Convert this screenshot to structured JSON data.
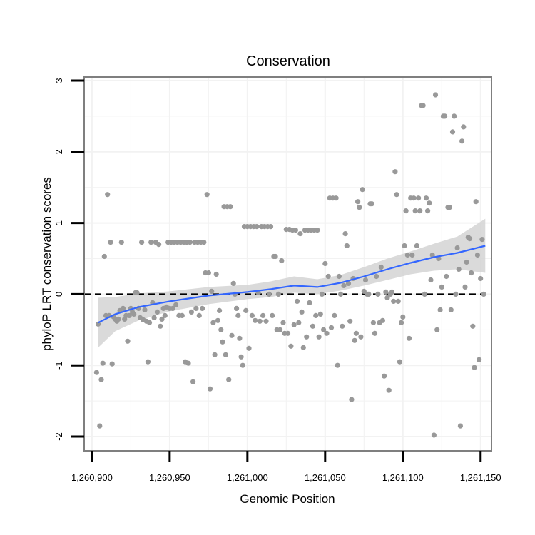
{
  "chart_data": {
    "type": "scatter",
    "title": "Conservation",
    "xlabel": "Genomic Position",
    "ylabel": "phyloP LRT conservation scores",
    "xlim": [
      1260895,
      1261157
    ],
    "ylim": [
      -2.2,
      3.05
    ],
    "x_ticks": [
      1260900,
      1260950,
      1261000,
      1261050,
      1261100,
      1261150
    ],
    "x_tick_labels": [
      "1,260,900",
      "1,260,950",
      "1,261,000",
      "1,261,050",
      "1,261,100",
      "1,261,150"
    ],
    "y_ticks": [
      -2,
      -1,
      0,
      1,
      2,
      3
    ],
    "y_tick_labels": [
      "-2",
      "-1",
      "0",
      "1",
      "2",
      "3"
    ],
    "reference_line_y": 0,
    "grid": true,
    "colors": {
      "points": "#999999",
      "smooth": "#3366ff",
      "band": "#d3d3d3",
      "frame": "#7f7f7f",
      "grid": "#f2f2f2"
    },
    "points": [
      [
        1260903,
        -1.1
      ],
      [
        1260904,
        -0.42
      ],
      [
        1260905,
        -1.85
      ],
      [
        1260906,
        -1.2
      ],
      [
        1260907,
        -0.97
      ],
      [
        1260908,
        0.53
      ],
      [
        1260909,
        -0.3
      ],
      [
        1260910,
        1.4
      ],
      [
        1260911,
        -0.3
      ],
      [
        1260912,
        0.73
      ],
      [
        1260913,
        -0.98
      ],
      [
        1260914,
        -0.32
      ],
      [
        1260915,
        -0.35
      ],
      [
        1260916,
        -0.38
      ],
      [
        1260917,
        -0.35
      ],
      [
        1260918,
        -0.23
      ],
      [
        1260919,
        0.73
      ],
      [
        1260920,
        -0.2
      ],
      [
        1260921,
        -0.35
      ],
      [
        1260922,
        -0.3
      ],
      [
        1260923,
        -0.66
      ],
      [
        1260924,
        -0.3
      ],
      [
        1260925,
        -0.2
      ],
      [
        1260926,
        -0.25
      ],
      [
        1260927,
        -0.28
      ],
      [
        1260928,
        0.02
      ],
      [
        1260929,
        0.02
      ],
      [
        1260930,
        -0.2
      ],
      [
        1260931,
        -0.33
      ],
      [
        1260932,
        0.73
      ],
      [
        1260933,
        -0.36
      ],
      [
        1260934,
        -0.22
      ],
      [
        1260935,
        -0.38
      ],
      [
        1260936,
        -0.95
      ],
      [
        1260937,
        -0.4
      ],
      [
        1260938,
        0.73
      ],
      [
        1260939,
        -0.12
      ],
      [
        1260940,
        -0.33
      ],
      [
        1260941,
        0.73
      ],
      [
        1260942,
        -0.25
      ],
      [
        1260943,
        0.7
      ],
      [
        1260944,
        -0.45
      ],
      [
        1260945,
        -0.35
      ],
      [
        1260946,
        -0.2
      ],
      [
        1260947,
        -0.3
      ],
      [
        1260948,
        -0.18
      ],
      [
        1260949,
        0.73
      ],
      [
        1260950,
        -0.2
      ],
      [
        1260951,
        0.73
      ],
      [
        1260952,
        -0.2
      ],
      [
        1260953,
        0.73
      ],
      [
        1260954,
        -0.15
      ],
      [
        1260955,
        0.73
      ],
      [
        1260956,
        -0.3
      ],
      [
        1260957,
        0.73
      ],
      [
        1260958,
        -0.3
      ],
      [
        1260959,
        0.73
      ],
      [
        1260960,
        -0.95
      ],
      [
        1260961,
        0.73
      ],
      [
        1260962,
        -0.97
      ],
      [
        1260963,
        0.73
      ],
      [
        1260964,
        -0.25
      ],
      [
        1260965,
        -1.23
      ],
      [
        1260966,
        0.73
      ],
      [
        1260967,
        -0.2
      ],
      [
        1260968,
        0.73
      ],
      [
        1260969,
        -0.3
      ],
      [
        1260970,
        0.73
      ],
      [
        1260971,
        -0.2
      ],
      [
        1260972,
        0.73
      ],
      [
        1260973,
        0.3
      ],
      [
        1260974,
        1.4
      ],
      [
        1260975,
        0.3
      ],
      [
        1260976,
        -1.33
      ],
      [
        1260977,
        0.04
      ],
      [
        1260978,
        -0.4
      ],
      [
        1260979,
        -0.85
      ],
      [
        1260980,
        0.28
      ],
      [
        1260981,
        -0.37
      ],
      [
        1260982,
        -0.23
      ],
      [
        1260983,
        -0.5
      ],
      [
        1260984,
        -0.67
      ],
      [
        1260985,
        1.23
      ],
      [
        1260986,
        -0.85
      ],
      [
        1260987,
        1.23
      ],
      [
        1260988,
        -1.2
      ],
      [
        1260989,
        1.23
      ],
      [
        1260990,
        -0.58
      ],
      [
        1260991,
        0.15
      ],
      [
        1260992,
        0.0
      ],
      [
        1260993,
        -0.2
      ],
      [
        1260994,
        -0.3
      ],
      [
        1260995,
        -0.62
      ],
      [
        1260996,
        -0.88
      ],
      [
        1260997,
        -1.0
      ],
      [
        1260998,
        0.95
      ],
      [
        1260999,
        -0.23
      ],
      [
        1261000,
        0.95
      ],
      [
        1261001,
        -0.76
      ],
      [
        1261002,
        0.95
      ],
      [
        1261003,
        -0.3
      ],
      [
        1261004,
        0.95
      ],
      [
        1261005,
        -0.37
      ],
      [
        1261006,
        0.95
      ],
      [
        1261007,
        0.02
      ],
      [
        1261008,
        -0.38
      ],
      [
        1261009,
        0.95
      ],
      [
        1261010,
        -0.3
      ],
      [
        1261011,
        0.95
      ],
      [
        1261012,
        -0.38
      ],
      [
        1261013,
        0.95
      ],
      [
        1261014,
        0.0
      ],
      [
        1261015,
        0.95
      ],
      [
        1261016,
        -0.3
      ],
      [
        1261017,
        0.53
      ],
      [
        1261018,
        0.53
      ],
      [
        1261019,
        -0.5
      ],
      [
        1261020,
        0.0
      ],
      [
        1261021,
        -0.5
      ],
      [
        1261022,
        0.47
      ],
      [
        1261023,
        -0.4
      ],
      [
        1261024,
        -0.55
      ],
      [
        1261025,
        0.91
      ],
      [
        1261026,
        -0.55
      ],
      [
        1261027,
        0.91
      ],
      [
        1261028,
        -0.73
      ],
      [
        1261029,
        0.9
      ],
      [
        1261030,
        -0.43
      ],
      [
        1261031,
        0.9
      ],
      [
        1261032,
        -0.1
      ],
      [
        1261033,
        -0.4
      ],
      [
        1261034,
        0.85
      ],
      [
        1261035,
        -0.25
      ],
      [
        1261036,
        -0.75
      ],
      [
        1261037,
        0.9
      ],
      [
        1261038,
        -0.6
      ],
      [
        1261039,
        0.9
      ],
      [
        1261040,
        -0.12
      ],
      [
        1261041,
        0.9
      ],
      [
        1261042,
        -0.45
      ],
      [
        1261043,
        0.9
      ],
      [
        1261044,
        -0.3
      ],
      [
        1261045,
        0.9
      ],
      [
        1261046,
        -0.6
      ],
      [
        1261047,
        -0.28
      ],
      [
        1261048,
        0.0
      ],
      [
        1261049,
        -0.5
      ],
      [
        1261050,
        0.43
      ],
      [
        1261051,
        -0.55
      ],
      [
        1261052,
        0.25
      ],
      [
        1261053,
        1.35
      ],
      [
        1261054,
        -0.47
      ],
      [
        1261055,
        1.35
      ],
      [
        1261056,
        -0.3
      ],
      [
        1261057,
        1.35
      ],
      [
        1261058,
        -1.0
      ],
      [
        1261059,
        0.25
      ],
      [
        1261060,
        0.0
      ],
      [
        1261061,
        -0.45
      ],
      [
        1261062,
        0.12
      ],
      [
        1261063,
        0.85
      ],
      [
        1261064,
        0.68
      ],
      [
        1261065,
        0.15
      ],
      [
        1261066,
        -0.38
      ],
      [
        1261067,
        -1.48
      ],
      [
        1261068,
        0.22
      ],
      [
        1261069,
        -0.65
      ],
      [
        1261070,
        -0.55
      ],
      [
        1261071,
        1.3
      ],
      [
        1261072,
        1.22
      ],
      [
        1261073,
        -0.6
      ],
      [
        1261074,
        1.47
      ],
      [
        1261075,
        0.04
      ],
      [
        1261076,
        0.2
      ],
      [
        1261077,
        0.0
      ],
      [
        1261078,
        0.0
      ],
      [
        1261079,
        1.27
      ],
      [
        1261080,
        1.27
      ],
      [
        1261081,
        -0.4
      ],
      [
        1261082,
        -0.55
      ],
      [
        1261083,
        0.25
      ],
      [
        1261084,
        0.0
      ],
      [
        1261085,
        -0.4
      ],
      [
        1261086,
        0.38
      ],
      [
        1261087,
        -0.37
      ],
      [
        1261088,
        -1.15
      ],
      [
        1261089,
        0.03
      ],
      [
        1261090,
        -0.05
      ],
      [
        1261091,
        -1.35
      ],
      [
        1261092,
        0.0
      ],
      [
        1261093,
        0.03
      ],
      [
        1261094,
        -0.1
      ],
      [
        1261095,
        1.72
      ],
      [
        1261096,
        1.4
      ],
      [
        1261097,
        -0.1
      ],
      [
        1261098,
        -0.95
      ],
      [
        1261099,
        -0.4
      ],
      [
        1261100,
        -0.32
      ],
      [
        1261101,
        0.68
      ],
      [
        1261102,
        1.17
      ],
      [
        1261103,
        0.55
      ],
      [
        1261104,
        -0.62
      ],
      [
        1261105,
        1.35
      ],
      [
        1261106,
        0.55
      ],
      [
        1261107,
        1.35
      ],
      [
        1261108,
        1.17
      ],
      [
        1261109,
        0.68
      ],
      [
        1261110,
        1.35
      ],
      [
        1261111,
        1.17
      ],
      [
        1261112,
        2.65
      ],
      [
        1261113,
        2.65
      ],
      [
        1261114,
        0.0
      ],
      [
        1261115,
        1.35
      ],
      [
        1261116,
        1.17
      ],
      [
        1261117,
        1.28
      ],
      [
        1261118,
        0.2
      ],
      [
        1261119,
        0.55
      ],
      [
        1261120,
        -1.98
      ],
      [
        1261121,
        2.8
      ],
      [
        1261122,
        -0.5
      ],
      [
        1261123,
        0.5
      ],
      [
        1261124,
        -0.22
      ],
      [
        1261125,
        0.1
      ],
      [
        1261126,
        2.5
      ],
      [
        1261127,
        2.5
      ],
      [
        1261128,
        0.25
      ],
      [
        1261129,
        1.22
      ],
      [
        1261130,
        1.22
      ],
      [
        1261131,
        -0.22
      ],
      [
        1261132,
        2.28
      ],
      [
        1261133,
        2.5
      ],
      [
        1261134,
        0.0
      ],
      [
        1261135,
        0.65
      ],
      [
        1261136,
        0.35
      ],
      [
        1261137,
        -1.85
      ],
      [
        1261138,
        2.15
      ],
      [
        1261139,
        2.35
      ],
      [
        1261140,
        0.1
      ],
      [
        1261141,
        0.45
      ],
      [
        1261142,
        0.8
      ],
      [
        1261143,
        0.78
      ],
      [
        1261144,
        0.3
      ],
      [
        1261145,
        -0.45
      ],
      [
        1261146,
        -1.03
      ],
      [
        1261147,
        1.3
      ],
      [
        1261148,
        0.55
      ],
      [
        1261149,
        -0.92
      ],
      [
        1261150,
        0.22
      ],
      [
        1261151,
        0.77
      ],
      [
        1261152,
        0.0
      ]
    ],
    "smooth": {
      "x": [
        1260904,
        1260915,
        1260930,
        1260950,
        1260975,
        1261000,
        1261015,
        1261030,
        1261045,
        1261060,
        1261075,
        1261090,
        1261105,
        1261120,
        1261135,
        1261153
      ],
      "y": [
        -0.4,
        -0.28,
        -0.18,
        -0.1,
        -0.02,
        0.03,
        0.07,
        0.12,
        0.1,
        0.16,
        0.25,
        0.35,
        0.44,
        0.52,
        0.58,
        0.68
      ],
      "lower": [
        -0.75,
        -0.52,
        -0.37,
        -0.24,
        -0.14,
        -0.07,
        -0.04,
        0.02,
        0.0,
        0.05,
        0.12,
        0.2,
        0.28,
        0.33,
        0.35,
        0.3
      ],
      "upper": [
        -0.05,
        -0.04,
        0.01,
        0.04,
        0.1,
        0.13,
        0.18,
        0.25,
        0.21,
        0.27,
        0.38,
        0.5,
        0.6,
        0.71,
        0.81,
        1.06
      ]
    }
  }
}
